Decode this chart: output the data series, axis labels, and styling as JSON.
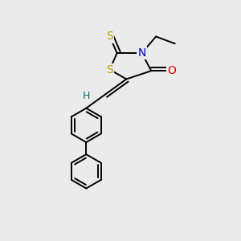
{
  "background_color": "#ebebeb",
  "atom_colors": {
    "S": "#b8a000",
    "N": "#0000cc",
    "O": "#dd0000",
    "C": "#000000",
    "H": "#007070"
  },
  "bond_color": "#000000",
  "bond_width": 1.4,
  "fig_width": 3.0,
  "fig_height": 3.0,
  "dpi": 100
}
